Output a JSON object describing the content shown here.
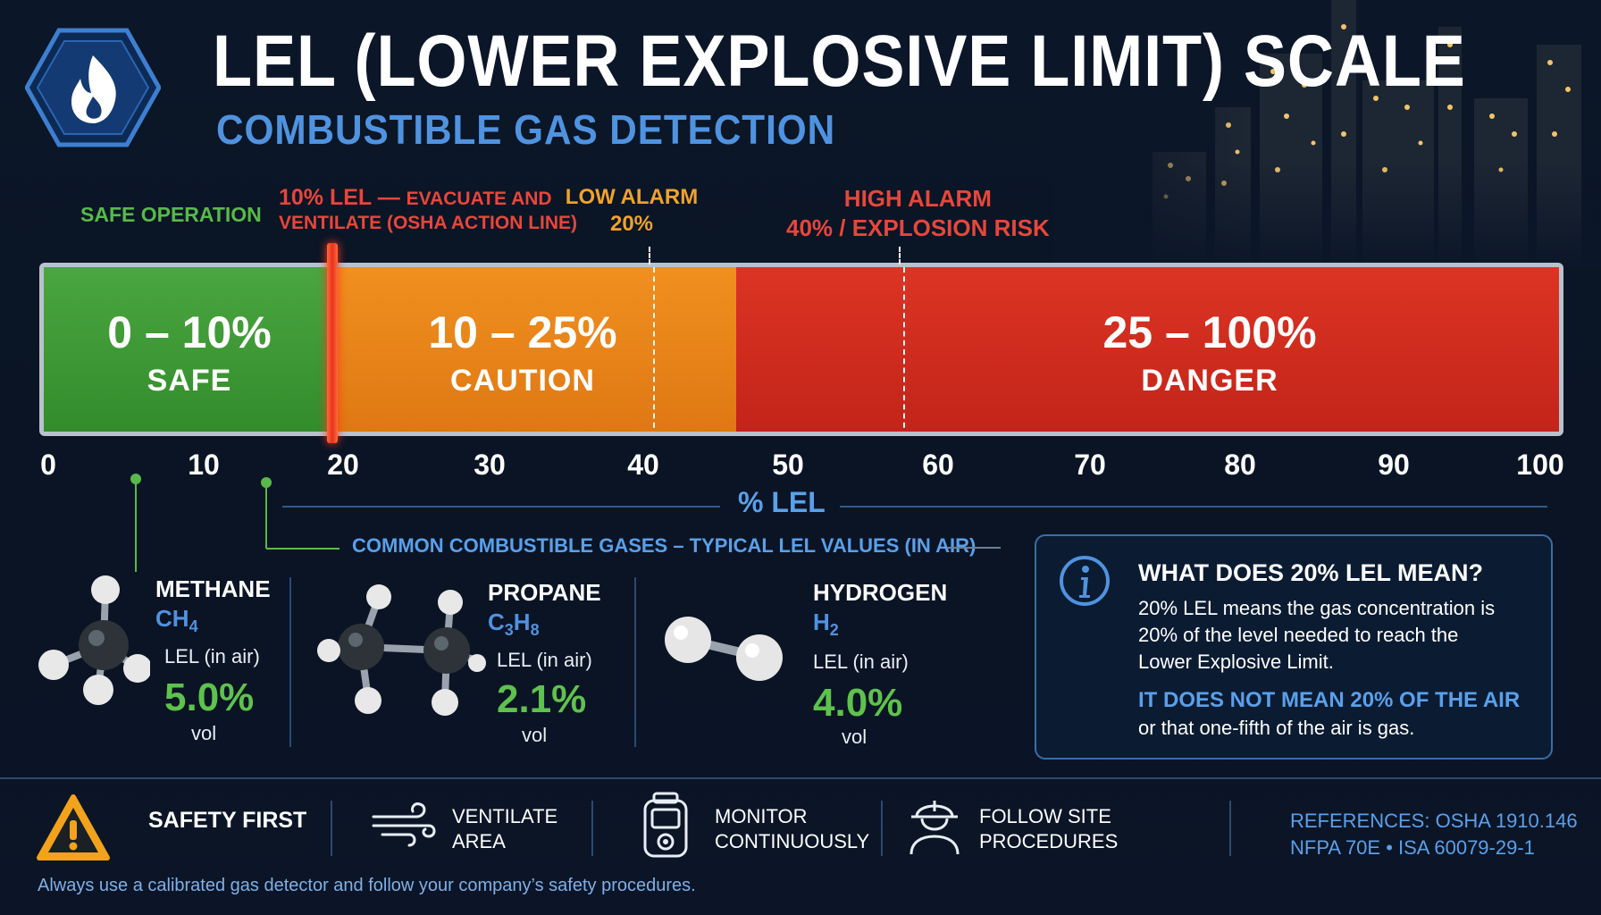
{
  "header": {
    "title": "LEL (LOWER EXPLOSIVE LIMIT) SCALE",
    "subtitle": "COMBUSTIBLE GAS DETECTION"
  },
  "markers": {
    "safe_operation": "SAFE OPERATION",
    "evacuate_line1": "10% LEL — ",
    "evacuate_line1b": "EVACUATE AND",
    "evacuate_line2": "VENTILATE (OSHA ACTION LINE)",
    "low_alarm_label": "LOW ALARM",
    "low_alarm_value": "20%",
    "high_alarm_label": "HIGH ALARM",
    "high_alarm_value": "40% / EXPLOSION RISK"
  },
  "zones": [
    {
      "range": "0 – 10%",
      "name": "SAFE"
    },
    {
      "range": "10 – 25%",
      "name": "CAUTION"
    },
    {
      "range": "25 – 100%",
      "name": "DANGER"
    }
  ],
  "axis": {
    "ticks": [
      "0",
      "10",
      "20",
      "30",
      "40",
      "50",
      "60",
      "70",
      "80",
      "90",
      "100"
    ],
    "title": "% LEL"
  },
  "gases": {
    "heading": "COMMON COMBUSTIBLE GASES – TYPICAL LEL VALUES (IN AIR)",
    "items": [
      {
        "name": "METHANE",
        "formula": "CH",
        "sub": "4",
        "formula2": "",
        "sub2": "",
        "lel_label": "LEL (in air)",
        "value": "5.0%",
        "unit": "vol"
      },
      {
        "name": "PROPANE",
        "formula": "C",
        "sub": "3",
        "formula2": "H",
        "sub2": "8",
        "lel_label": "LEL (in air)",
        "value": "2.1%",
        "unit": "vol"
      },
      {
        "name": "HYDROGEN",
        "formula": "H",
        "sub": "2",
        "formula2": "",
        "sub2": "",
        "lel_label": "LEL (in air)",
        "value": "4.0%",
        "unit": "vol"
      }
    ]
  },
  "info": {
    "icon": "info-icon",
    "title": "WHAT DOES 20% LEL MEAN?",
    "line1": "20% LEL means the gas concentration is",
    "line2": "20% of the level needed to reach the",
    "line3": "Lower Explosive Limit.",
    "emph": "IT DOES NOT MEAN 20% OF THE AIR",
    "line4": "or that one-fifth of the air is gas."
  },
  "footer": {
    "safety_first": "SAFETY FIRST",
    "ventilate_1": "VENTILATE",
    "ventilate_2": "AREA",
    "monitor_1": "MONITOR",
    "monitor_2": "CONTINUOUSLY",
    "follow_1": "FOLLOW SITE",
    "follow_2": "PROCEDURES",
    "refs_1": "REFERENCES: OSHA 1910.146",
    "refs_2": "NFPA 70E • ISA 60079-29-1",
    "disclaimer": "Always use a calibrated gas detector and follow your company’s safety procedures."
  },
  "colors": {
    "safe": "#4aa640",
    "caution": "#f0901f",
    "danger": "#dc3424",
    "accent_blue": "#4f93e0",
    "background": "#0b1628"
  }
}
